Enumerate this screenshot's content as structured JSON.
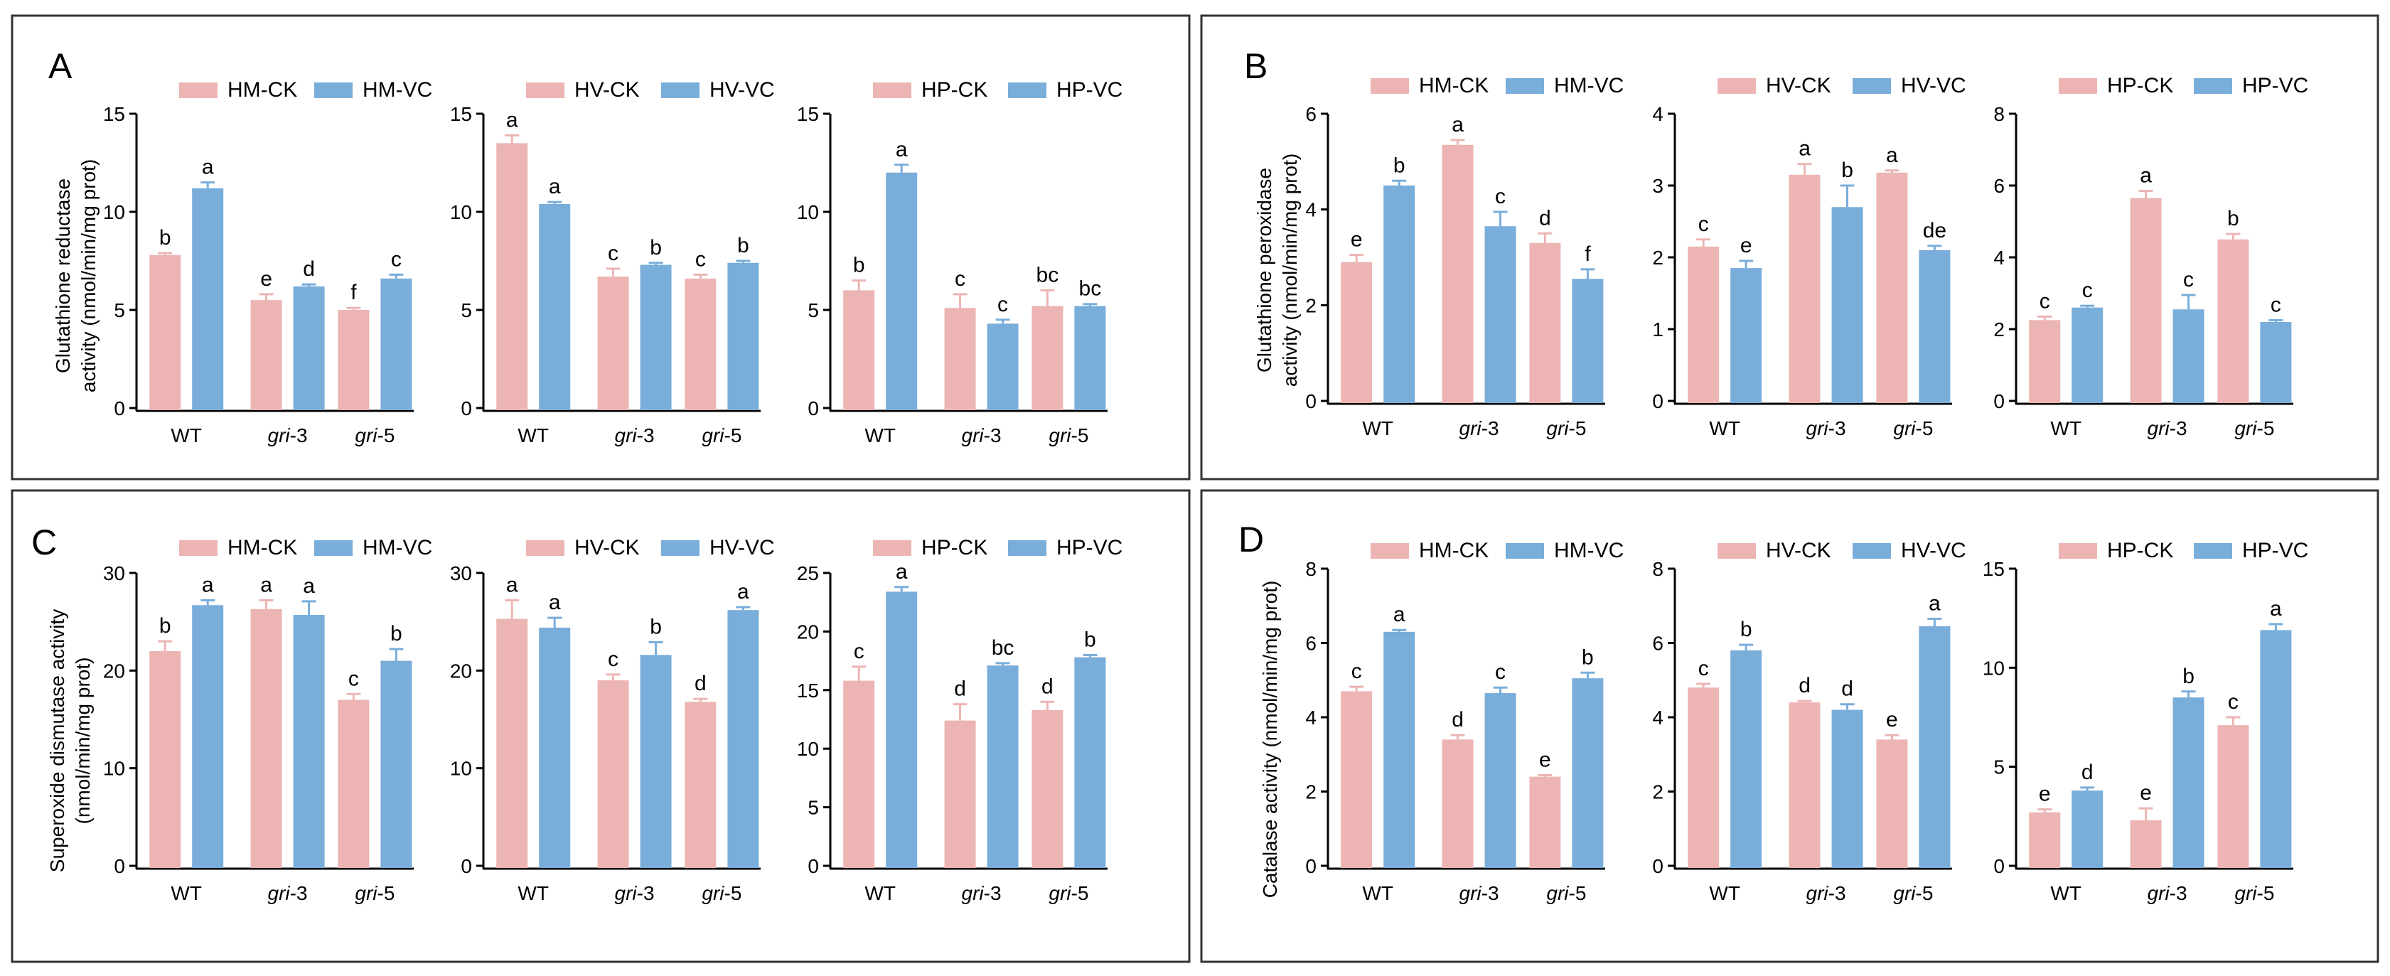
{
  "figure": {
    "colors": {
      "ck": "#ECB5B3",
      "vc": "#79ADDA",
      "axis": "#000000",
      "frame": "#333333"
    },
    "groups": [
      "WT",
      "gri-3",
      "gri-5"
    ]
  },
  "chart_data": [
    {
      "panel": "A",
      "ylabel": [
        "Glutathione reductase",
        "activity (nmol/min/mg prot)"
      ],
      "subcharts": [
        {
          "type": "bar",
          "categories": [
            "WT",
            "gri-3",
            "gri-5"
          ],
          "ylim": [
            0,
            15
          ],
          "yticks": [
            0,
            5,
            10,
            15
          ],
          "series": [
            {
              "name": "HM-CK",
              "values": [
                7.8,
                5.5,
                5.0
              ],
              "errors": [
                0.1,
                0.3,
                0.1
              ],
              "letters": [
                "b",
                "e",
                "f"
              ]
            },
            {
              "name": "HM-VC",
              "values": [
                11.2,
                6.2,
                6.6
              ],
              "errors": [
                0.3,
                0.1,
                0.2
              ],
              "letters": [
                "a",
                "d",
                "c"
              ]
            }
          ]
        },
        {
          "type": "bar",
          "categories": [
            "WT",
            "gri-3",
            "gri-5"
          ],
          "ylim": [
            0,
            15
          ],
          "yticks": [
            0,
            5,
            10,
            15
          ],
          "series": [
            {
              "name": "HV-CK",
              "values": [
                13.5,
                6.7,
                6.6
              ],
              "errors": [
                0.4,
                0.4,
                0.2
              ],
              "letters": [
                "a",
                "c",
                "c"
              ]
            },
            {
              "name": "HV-VC",
              "values": [
                10.4,
                7.3,
                7.4
              ],
              "errors": [
                0.1,
                0.1,
                0.1
              ],
              "letters": [
                "a",
                "b",
                "b"
              ]
            }
          ]
        },
        {
          "type": "bar",
          "categories": [
            "WT",
            "gri-3",
            "gri-5"
          ],
          "ylim": [
            0,
            15
          ],
          "yticks": [
            0,
            5,
            10,
            15
          ],
          "series": [
            {
              "name": "HP-CK",
              "values": [
                6.0,
                5.1,
                5.2
              ],
              "errors": [
                0.5,
                0.7,
                0.8
              ],
              "letters": [
                "b",
                "c",
                "bc"
              ]
            },
            {
              "name": "HP-VC",
              "values": [
                12.0,
                4.3,
                5.2
              ],
              "errors": [
                0.4,
                0.2,
                0.1
              ],
              "letters": [
                "a",
                "c",
                "bc"
              ]
            }
          ]
        }
      ]
    },
    {
      "panel": "B",
      "ylabel": [
        "Glutathione peroxidase",
        "activity (nmol/min/mg prot)"
      ],
      "subcharts": [
        {
          "type": "bar",
          "categories": [
            "WT",
            "gri-3",
            "gri-5"
          ],
          "ylim": [
            0,
            6
          ],
          "yticks": [
            0,
            2,
            4,
            6
          ],
          "series": [
            {
              "name": "HM-CK",
              "values": [
                2.9,
                5.35,
                3.3
              ],
              "errors": [
                0.15,
                0.1,
                0.2
              ],
              "letters": [
                "e",
                "a",
                "d"
              ]
            },
            {
              "name": "HM-VC",
              "values": [
                4.5,
                3.65,
                2.55
              ],
              "errors": [
                0.1,
                0.3,
                0.2
              ],
              "letters": [
                "b",
                "c",
                "f"
              ]
            }
          ]
        },
        {
          "type": "bar",
          "categories": [
            "WT",
            "gri-3",
            "gri-5"
          ],
          "ylim": [
            0,
            4
          ],
          "yticks": [
            0,
            1,
            2,
            3,
            4
          ],
          "series": [
            {
              "name": "HV-CK",
              "values": [
                2.15,
                3.15,
                3.18
              ],
              "errors": [
                0.1,
                0.15,
                0.03
              ],
              "letters": [
                "c",
                "a",
                "a"
              ]
            },
            {
              "name": "HV-VC",
              "values": [
                1.85,
                2.7,
                2.1
              ],
              "errors": [
                0.1,
                0.3,
                0.06
              ],
              "letters": [
                "e",
                "b",
                "de"
              ]
            }
          ]
        },
        {
          "type": "bar",
          "categories": [
            "WT",
            "gri-3",
            "gri-5"
          ],
          "ylim": [
            0,
            8
          ],
          "yticks": [
            0,
            2,
            4,
            6,
            8
          ],
          "series": [
            {
              "name": "HP-CK",
              "values": [
                2.25,
                5.65,
                4.5
              ],
              "errors": [
                0.1,
                0.2,
                0.15
              ],
              "letters": [
                "c",
                "a",
                "b"
              ]
            },
            {
              "name": "HP-VC",
              "values": [
                2.6,
                2.55,
                2.2
              ],
              "errors": [
                0.05,
                0.4,
                0.05
              ],
              "letters": [
                "c",
                "c",
                "c"
              ]
            }
          ]
        }
      ]
    },
    {
      "panel": "C",
      "ylabel": [
        "Superoxide dismutase activity",
        "(nmol/min/mg prot)"
      ],
      "subcharts": [
        {
          "type": "bar",
          "categories": [
            "WT",
            "gri-3",
            "gri-5"
          ],
          "ylim": [
            0,
            30
          ],
          "yticks": [
            0,
            10,
            20,
            30
          ],
          "series": [
            {
              "name": "HM-CK",
              "values": [
                22.0,
                26.3,
                17.0
              ],
              "errors": [
                1.0,
                0.9,
                0.6
              ],
              "letters": [
                "b",
                "a",
                "c"
              ]
            },
            {
              "name": "HM-VC",
              "values": [
                26.7,
                25.7,
                21.0
              ],
              "errors": [
                0.5,
                1.4,
                1.2
              ],
              "letters": [
                "a",
                "a",
                "b"
              ]
            }
          ]
        },
        {
          "type": "bar",
          "categories": [
            "WT",
            "gri-3",
            "gri-5"
          ],
          "ylim": [
            0,
            30
          ],
          "yticks": [
            0,
            10,
            20,
            30
          ],
          "series": [
            {
              "name": "HV-CK",
              "values": [
                25.3,
                19.0,
                16.8
              ],
              "errors": [
                1.9,
                0.6,
                0.3
              ],
              "letters": [
                "a",
                "c",
                "d"
              ]
            },
            {
              "name": "HV-VC",
              "values": [
                24.4,
                21.6,
                26.2
              ],
              "errors": [
                1.0,
                1.3,
                0.3
              ],
              "letters": [
                "a",
                "b",
                "a"
              ]
            }
          ]
        },
        {
          "type": "bar",
          "categories": [
            "WT",
            "gri-3",
            "gri-5"
          ],
          "ylim": [
            0,
            25
          ],
          "yticks": [
            0,
            5,
            10,
            15,
            20,
            25
          ],
          "series": [
            {
              "name": "HP-CK",
              "values": [
                15.8,
                12.4,
                13.3
              ],
              "errors": [
                1.2,
                1.4,
                0.7
              ],
              "letters": [
                "c",
                "d",
                "d"
              ]
            },
            {
              "name": "HP-VC",
              "values": [
                23.4,
                17.1,
                17.8
              ],
              "errors": [
                0.4,
                0.2,
                0.2
              ],
              "letters": [
                "a",
                "bc",
                "b"
              ]
            }
          ]
        }
      ]
    },
    {
      "panel": "D",
      "ylabel": [
        "Catalase activity (nmol/min/mg prot)"
      ],
      "subcharts": [
        {
          "type": "bar",
          "categories": [
            "WT",
            "gri-3",
            "gri-5"
          ],
          "ylim": [
            0,
            8
          ],
          "yticks": [
            0,
            2,
            4,
            6,
            8
          ],
          "series": [
            {
              "name": "HM-CK",
              "values": [
                4.7,
                3.4,
                2.4
              ],
              "errors": [
                0.12,
                0.12,
                0.04
              ],
              "letters": [
                "c",
                "d",
                "e"
              ]
            },
            {
              "name": "HM-VC",
              "values": [
                6.3,
                4.65,
                5.05
              ],
              "errors": [
                0.05,
                0.15,
                0.15
              ],
              "letters": [
                "a",
                "c",
                "b"
              ]
            }
          ]
        },
        {
          "type": "bar",
          "categories": [
            "WT",
            "gri-3",
            "gri-5"
          ],
          "ylim": [
            0,
            8
          ],
          "yticks": [
            0,
            2,
            4,
            6,
            8
          ],
          "series": [
            {
              "name": "HV-CK",
              "values": [
                4.8,
                4.4,
                3.4
              ],
              "errors": [
                0.1,
                0.04,
                0.12
              ],
              "letters": [
                "c",
                "d",
                "e"
              ]
            },
            {
              "name": "HV-VC",
              "values": [
                5.8,
                4.2,
                6.45
              ],
              "errors": [
                0.15,
                0.15,
                0.2
              ],
              "letters": [
                "b",
                "d",
                "a"
              ]
            }
          ]
        },
        {
          "type": "bar",
          "categories": [
            "WT",
            "gri-3",
            "gri-5"
          ],
          "ylim": [
            0,
            15
          ],
          "yticks": [
            0,
            5,
            10,
            15
          ],
          "series": [
            {
              "name": "HP-CK",
              "values": [
                2.7,
                2.3,
                7.1
              ],
              "errors": [
                0.15,
                0.6,
                0.4
              ],
              "letters": [
                "e",
                "e",
                "c"
              ]
            },
            {
              "name": "HP-VC",
              "values": [
                3.8,
                8.5,
                11.9
              ],
              "errors": [
                0.15,
                0.3,
                0.3
              ],
              "letters": [
                "d",
                "b",
                "a"
              ]
            }
          ]
        }
      ]
    }
  ]
}
